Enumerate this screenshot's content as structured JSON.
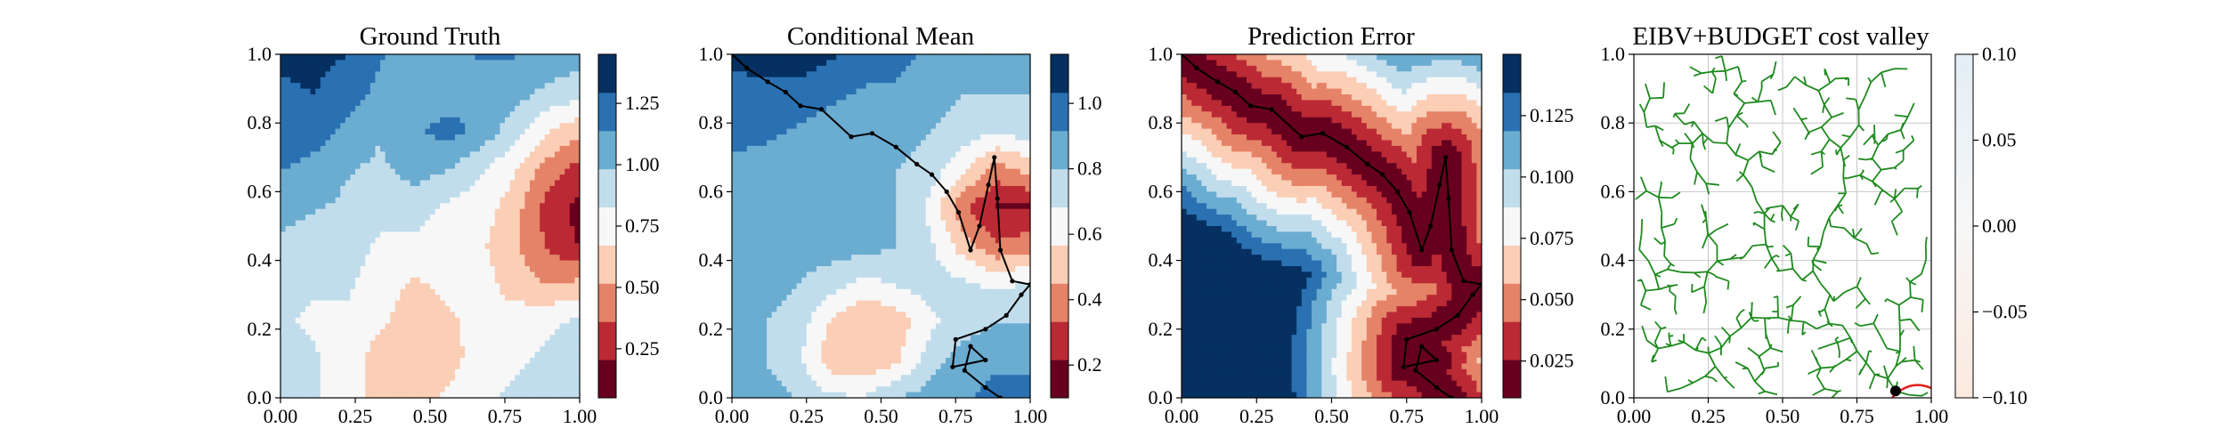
{
  "chart_data": [
    {
      "type": "heatmap",
      "title": "Ground Truth",
      "xlabel": "",
      "ylabel": "",
      "xlim": [
        0,
        1
      ],
      "ylim": [
        0,
        1
      ],
      "x_ticks": [
        "0.00",
        "0.25",
        "0.50",
        "0.75",
        "1.00"
      ],
      "y_ticks": [
        "0.0",
        "0.2",
        "0.4",
        "0.6",
        "0.8",
        "1.0"
      ],
      "colormap": "RdBu",
      "colorbar": {
        "range": [
          0.05,
          1.45
        ],
        "ticks": [
          "0.25",
          "0.50",
          "0.75",
          "1.00",
          "1.25"
        ]
      },
      "field": [
        [
          1.35,
          1.35,
          1.3,
          1.15,
          1.1,
          1.1,
          1.15,
          1.15,
          1.1,
          1.05
        ],
        [
          1.25,
          1.3,
          1.2,
          1.1,
          1.05,
          1.05,
          1.1,
          1.05,
          0.95,
          0.9
        ],
        [
          1.2,
          1.2,
          1.1,
          1.0,
          1.1,
          1.2,
          1.1,
          0.9,
          0.7,
          0.55
        ],
        [
          1.15,
          1.1,
          1.0,
          0.95,
          1.05,
          1.0,
          0.85,
          0.7,
          0.45,
          0.3
        ],
        [
          1.05,
          1.0,
          0.95,
          0.9,
          0.9,
          0.8,
          0.75,
          0.6,
          0.3,
          0.15
        ],
        [
          0.95,
          0.9,
          0.9,
          0.8,
          0.8,
          0.75,
          0.7,
          0.55,
          0.35,
          0.2
        ],
        [
          0.9,
          0.85,
          0.85,
          0.75,
          0.65,
          0.7,
          0.75,
          0.6,
          0.5,
          0.55
        ],
        [
          0.85,
          0.8,
          0.8,
          0.7,
          0.6,
          0.65,
          0.7,
          0.75,
          0.8,
          0.85
        ],
        [
          0.9,
          0.85,
          0.75,
          0.6,
          0.55,
          0.6,
          0.75,
          0.8,
          0.85,
          0.9
        ],
        [
          0.85,
          0.85,
          0.75,
          0.6,
          0.6,
          0.7,
          0.8,
          0.85,
          0.9,
          0.95
        ]
      ]
    },
    {
      "type": "heatmap",
      "title": "Conditional Mean",
      "xlabel": "",
      "ylabel": "",
      "xlim": [
        0,
        1
      ],
      "ylim": [
        0,
        1
      ],
      "x_ticks": [
        "0.00",
        "0.25",
        "0.50",
        "0.75",
        "1.00"
      ],
      "y_ticks": [
        "0.0",
        "0.2",
        "0.4",
        "0.6",
        "0.8",
        "1.0"
      ],
      "colormap": "RdBu",
      "colorbar": {
        "range": [
          0.1,
          1.15
        ],
        "ticks": [
          "0.2",
          "0.4",
          "0.6",
          "0.8",
          "1.0"
        ]
      },
      "field": [
        [
          1.05,
          1.1,
          1.1,
          1.05,
          1.0,
          0.95,
          0.9,
          0.9,
          0.85,
          0.85
        ],
        [
          1.0,
          1.0,
          1.0,
          0.95,
          0.9,
          0.9,
          0.85,
          0.8,
          0.8,
          0.8
        ],
        [
          0.95,
          0.95,
          0.9,
          0.85,
          0.85,
          0.85,
          0.8,
          0.75,
          0.7,
          0.75
        ],
        [
          0.9,
          0.85,
          0.85,
          0.85,
          0.85,
          0.8,
          0.75,
          0.6,
          0.4,
          0.5
        ],
        [
          0.9,
          0.85,
          0.85,
          0.85,
          0.85,
          0.8,
          0.65,
          0.35,
          0.2,
          0.2
        ],
        [
          0.85,
          0.85,
          0.85,
          0.85,
          0.85,
          0.8,
          0.7,
          0.5,
          0.35,
          0.4
        ],
        [
          0.85,
          0.85,
          0.8,
          0.75,
          0.65,
          0.7,
          0.75,
          0.7,
          0.65,
          0.7
        ],
        [
          0.85,
          0.8,
          0.75,
          0.55,
          0.45,
          0.5,
          0.65,
          0.75,
          0.8,
          0.8
        ],
        [
          0.9,
          0.8,
          0.7,
          0.5,
          0.45,
          0.55,
          0.75,
          0.85,
          0.9,
          0.9
        ],
        [
          0.9,
          0.85,
          0.8,
          0.7,
          0.7,
          0.8,
          0.85,
          0.9,
          0.95,
          0.95
        ]
      ],
      "path": [
        [
          0,
          1
        ],
        [
          0.05,
          0.96
        ],
        [
          0.12,
          0.92
        ],
        [
          0.18,
          0.89
        ],
        [
          0.23,
          0.85
        ],
        [
          0.3,
          0.84
        ],
        [
          0.4,
          0.76
        ],
        [
          0.47,
          0.77
        ],
        [
          0.55,
          0.73
        ],
        [
          0.62,
          0.68
        ],
        [
          0.67,
          0.65
        ],
        [
          0.72,
          0.6
        ],
        [
          0.76,
          0.54
        ],
        [
          0.8,
          0.43
        ],
        [
          0.83,
          0.5
        ],
        [
          0.86,
          0.62
        ],
        [
          0.88,
          0.7
        ],
        [
          0.89,
          0.58
        ],
        [
          0.9,
          0.43
        ],
        [
          0.94,
          0.34
        ],
        [
          1.0,
          0.33
        ],
        [
          0.97,
          0.3
        ],
        [
          0.92,
          0.24
        ],
        [
          0.85,
          0.2
        ],
        [
          0.75,
          0.17
        ],
        [
          0.74,
          0.09
        ],
        [
          0.85,
          0.11
        ],
        [
          0.8,
          0.15
        ],
        [
          0.78,
          0.08
        ],
        [
          0.85,
          0.03
        ],
        [
          0.9,
          0
        ]
      ]
    },
    {
      "type": "heatmap",
      "title": "Prediction Error",
      "xlabel": "",
      "ylabel": "",
      "xlim": [
        0,
        1
      ],
      "ylim": [
        0,
        1
      ],
      "x_ticks": [
        "0.00",
        "0.25",
        "0.50",
        "0.75",
        "1.00"
      ],
      "y_ticks": [
        "0.0",
        "0.2",
        "0.4",
        "0.6",
        "0.8",
        "1.0"
      ],
      "colormap": "RdBu",
      "colorbar": {
        "range": [
          0.01,
          0.15
        ],
        "ticks": [
          "0.025",
          "0.050",
          "0.075",
          "0.100",
          "0.125"
        ]
      },
      "path": [
        [
          0,
          1
        ],
        [
          0.05,
          0.96
        ],
        [
          0.12,
          0.92
        ],
        [
          0.18,
          0.89
        ],
        [
          0.23,
          0.85
        ],
        [
          0.3,
          0.84
        ],
        [
          0.4,
          0.76
        ],
        [
          0.47,
          0.77
        ],
        [
          0.55,
          0.73
        ],
        [
          0.62,
          0.68
        ],
        [
          0.67,
          0.65
        ],
        [
          0.72,
          0.6
        ],
        [
          0.76,
          0.54
        ],
        [
          0.8,
          0.43
        ],
        [
          0.83,
          0.5
        ],
        [
          0.86,
          0.62
        ],
        [
          0.88,
          0.7
        ],
        [
          0.89,
          0.58
        ],
        [
          0.9,
          0.43
        ],
        [
          0.94,
          0.34
        ],
        [
          1.0,
          0.33
        ],
        [
          0.97,
          0.3
        ],
        [
          0.92,
          0.24
        ],
        [
          0.85,
          0.2
        ],
        [
          0.75,
          0.17
        ],
        [
          0.74,
          0.09
        ],
        [
          0.85,
          0.11
        ],
        [
          0.8,
          0.15
        ],
        [
          0.78,
          0.08
        ],
        [
          0.85,
          0.03
        ],
        [
          0.9,
          0
        ]
      ]
    },
    {
      "type": "graph",
      "title": "EIBV+BUDGET cost valley",
      "xlabel": "",
      "ylabel": "",
      "xlim": [
        0,
        1
      ],
      "ylim": [
        0,
        1
      ],
      "x_ticks": [
        "0.00",
        "0.25",
        "0.50",
        "0.75",
        "1.00"
      ],
      "y_ticks": [
        "0.0",
        "0.2",
        "0.4",
        "0.6",
        "0.8",
        "1.0"
      ],
      "grid": true,
      "colormap": "RdBu",
      "colorbar": {
        "range": [
          -0.1,
          0.1
        ],
        "ticks": [
          "-0.10",
          "-0.05",
          "0.00",
          "0.05",
          "0.10"
        ]
      },
      "tree_color": "#1f8a1f",
      "marker": {
        "x": 0.88,
        "y": 0.02
      },
      "arc_color": "#e0201a"
    }
  ]
}
